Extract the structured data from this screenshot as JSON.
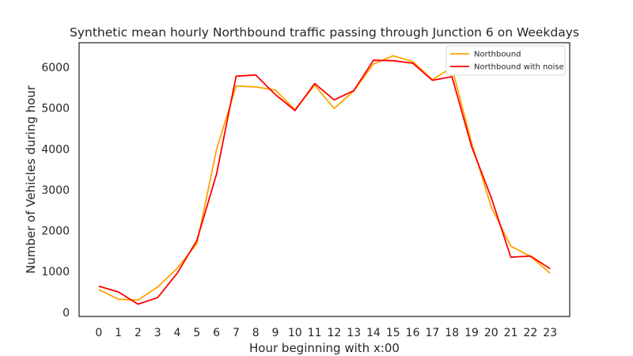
{
  "chart_data": {
    "type": "line",
    "title": "Synthetic mean hourly Northbound traffic passing through Junction 6 on Weekdays",
    "xlabel": "Hour beginning with x:00",
    "ylabel": "Number of Vehicles during hour",
    "x": [
      0,
      1,
      2,
      3,
      4,
      5,
      6,
      7,
      8,
      9,
      10,
      11,
      12,
      13,
      14,
      15,
      16,
      17,
      18,
      19,
      20,
      21,
      22,
      23
    ],
    "xticks": [
      "0",
      "1",
      "2",
      "3",
      "4",
      "5",
      "6",
      "7",
      "8",
      "9",
      "10",
      "11",
      "12",
      "13",
      "14",
      "15",
      "16",
      "17",
      "18",
      "19",
      "20",
      "21",
      "22",
      "23"
    ],
    "yticks": [
      "0",
      "1000",
      "2000",
      "3000",
      "4000",
      "5000",
      "6000"
    ],
    "ytick_values": [
      0,
      1000,
      2000,
      3000,
      4000,
      5000,
      6000
    ],
    "xlim": [
      -1,
      24
    ],
    "ylim": [
      -100,
      6600
    ],
    "grid": false,
    "legend_position": "top-right",
    "series": [
      {
        "name": "Northbound",
        "color": "#FFA500",
        "values": [
          560,
          320,
          300,
          620,
          1080,
          1680,
          3980,
          5540,
          5520,
          5440,
          4960,
          5560,
          4990,
          5420,
          6080,
          6280,
          6140,
          5700,
          5990,
          4150,
          2580,
          1620,
          1370,
          960
        ]
      },
      {
        "name": "Northbound with noise",
        "color": "#FF0000",
        "values": [
          640,
          500,
          200,
          360,
          960,
          1760,
          3380,
          5780,
          5810,
          5330,
          4940,
          5600,
          5200,
          5430,
          6170,
          6160,
          6100,
          5680,
          5770,
          4060,
          2810,
          1350,
          1380,
          1070
        ]
      }
    ]
  }
}
